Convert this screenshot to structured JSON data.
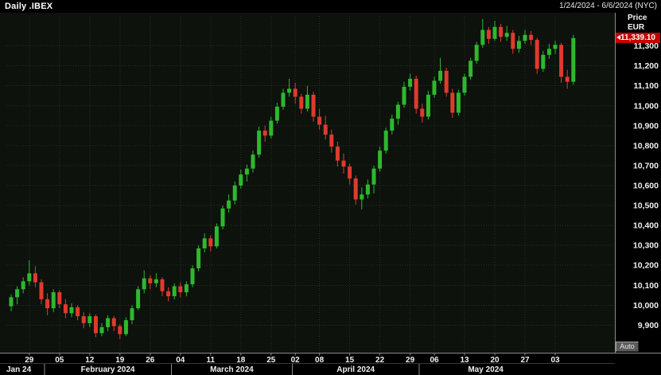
{
  "header": {
    "title": "Daily .IBEX",
    "date_range": "1/24/2024 - 6/6/2024 (NYC)"
  },
  "axis": {
    "price_label": "Price",
    "currency_label": "EUR",
    "auto_label": "Auto"
  },
  "price_tag": {
    "value": "11,339.10",
    "bg_color": "#c40000",
    "text_color": "#ffffff"
  },
  "colors": {
    "plot_bg": "#0d120d",
    "panel_bg": "#000000",
    "up": "#2eb82e",
    "down": "#e03a2e",
    "grid": "#2a2f2a",
    "axis_line": "#8a8a8a",
    "minor_line": "#3a3a3a",
    "text": "#f0f0f0"
  },
  "chart_data": {
    "type": "candlestick",
    "title": "Daily .IBEX",
    "symbol": ".IBEX",
    "interval": "Daily",
    "currency": "EUR",
    "timezone": "NYC",
    "last_price": 11339.1,
    "y_range": [
      9770,
      11450
    ],
    "y_ticks": [
      9900,
      10000,
      10100,
      10200,
      10300,
      10400,
      10500,
      10600,
      10700,
      10800,
      10900,
      11000,
      11100,
      11200,
      11300
    ],
    "x_ticks": [
      {
        "label": "29",
        "index": 3
      },
      {
        "label": "05",
        "index": 8
      },
      {
        "label": "12",
        "index": 13
      },
      {
        "label": "19",
        "index": 18
      },
      {
        "label": "26",
        "index": 23
      },
      {
        "label": "04",
        "index": 28
      },
      {
        "label": "11",
        "index": 33
      },
      {
        "label": "18",
        "index": 38
      },
      {
        "label": "25",
        "index": 43
      },
      {
        "label": "02",
        "index": 47
      },
      {
        "label": "08",
        "index": 51
      },
      {
        "label": "15",
        "index": 56
      },
      {
        "label": "22",
        "index": 61
      },
      {
        "label": "29",
        "index": 66
      },
      {
        "label": "06",
        "index": 70
      },
      {
        "label": "13",
        "index": 75
      },
      {
        "label": "20",
        "index": 80
      },
      {
        "label": "27",
        "index": 85
      },
      {
        "label": "03",
        "index": 90
      }
    ],
    "month_labels": [
      {
        "label": "Jan 24",
        "start": 0,
        "end": 5,
        "align": "left"
      },
      {
        "label": "February 2024",
        "start": 6,
        "end": 26
      },
      {
        "label": "March 2024",
        "start": 27,
        "end": 46
      },
      {
        "label": "April 2024",
        "start": 47,
        "end": 67
      },
      {
        "label": "May 2024",
        "start": 68,
        "end": 89
      }
    ],
    "candles": [
      [
        "2024-01-24",
        9995,
        10055,
        9970,
        10040
      ],
      [
        "2024-01-25",
        10040,
        10095,
        10005,
        10080
      ],
      [
        "2024-01-26",
        10080,
        10140,
        10060,
        10120
      ],
      [
        "2024-01-29",
        10120,
        10225,
        10100,
        10160
      ],
      [
        "2024-01-30",
        10160,
        10195,
        10090,
        10115
      ],
      [
        "2024-01-31",
        10115,
        10130,
        10005,
        10030
      ],
      [
        "2024-02-01",
        10030,
        10060,
        9950,
        9985
      ],
      [
        "2024-02-02",
        9985,
        10080,
        9965,
        10065
      ],
      [
        "2024-02-05",
        10065,
        10075,
        9985,
        10005
      ],
      [
        "2024-02-06",
        10005,
        10030,
        9935,
        9960
      ],
      [
        "2024-02-07",
        9960,
        10010,
        9940,
        9990
      ],
      [
        "2024-02-08",
        9990,
        10000,
        9925,
        9945
      ],
      [
        "2024-02-09",
        9945,
        9965,
        9885,
        9910
      ],
      [
        "2024-02-12",
        9910,
        9960,
        9890,
        9945
      ],
      [
        "2024-02-13",
        9945,
        9955,
        9840,
        9860
      ],
      [
        "2024-02-14",
        9860,
        9910,
        9845,
        9890
      ],
      [
        "2024-02-15",
        9890,
        9950,
        9870,
        9935
      ],
      [
        "2024-02-16",
        9935,
        9945,
        9870,
        9895
      ],
      [
        "2024-02-19",
        9895,
        9905,
        9830,
        9855
      ],
      [
        "2024-02-20",
        9855,
        9940,
        9845,
        9925
      ],
      [
        "2024-02-21",
        9925,
        10000,
        9905,
        9985
      ],
      [
        "2024-02-22",
        9985,
        10095,
        9975,
        10080
      ],
      [
        "2024-02-23",
        10080,
        10175,
        10060,
        10135
      ],
      [
        "2024-02-26",
        10135,
        10150,
        10080,
        10110
      ],
      [
        "2024-02-27",
        10110,
        10160,
        10090,
        10130
      ],
      [
        "2024-02-28",
        10130,
        10140,
        10045,
        10070
      ],
      [
        "2024-02-29",
        10070,
        10090,
        10020,
        10045
      ],
      [
        "2024-03-01",
        10045,
        10110,
        10030,
        10095
      ],
      [
        "2024-03-04",
        10095,
        10115,
        10040,
        10065
      ],
      [
        "2024-03-05",
        10065,
        10120,
        10045,
        10105
      ],
      [
        "2024-03-06",
        10105,
        10200,
        10090,
        10185
      ],
      [
        "2024-03-07",
        10185,
        10300,
        10170,
        10285
      ],
      [
        "2024-03-08",
        10285,
        10360,
        10265,
        10335
      ],
      [
        "2024-03-11",
        10335,
        10350,
        10270,
        10295
      ],
      [
        "2024-03-12",
        10295,
        10410,
        10285,
        10395
      ],
      [
        "2024-03-13",
        10395,
        10500,
        10380,
        10485
      ],
      [
        "2024-03-14",
        10485,
        10555,
        10465,
        10525
      ],
      [
        "2024-03-15",
        10525,
        10620,
        10505,
        10600
      ],
      [
        "2024-03-18",
        10600,
        10680,
        10585,
        10655
      ],
      [
        "2024-03-19",
        10655,
        10705,
        10620,
        10685
      ],
      [
        "2024-03-20",
        10685,
        10775,
        10665,
        10755
      ],
      [
        "2024-03-21",
        10755,
        10895,
        10740,
        10875
      ],
      [
        "2024-03-22",
        10875,
        10900,
        10820,
        10850
      ],
      [
        "2024-03-25",
        10850,
        10945,
        10835,
        10925
      ],
      [
        "2024-03-26",
        10925,
        11015,
        10910,
        10995
      ],
      [
        "2024-03-27",
        10995,
        11085,
        10980,
        11065
      ],
      [
        "2024-03-28",
        11065,
        11135,
        11045,
        11085
      ],
      [
        "2024-04-02",
        11085,
        11115,
        11010,
        11045
      ],
      [
        "2024-04-03",
        11045,
        11060,
        10960,
        10985
      ],
      [
        "2024-04-04",
        10985,
        11100,
        10970,
        11055
      ],
      [
        "2024-04-05",
        11055,
        11070,
        10920,
        10945
      ],
      [
        "2024-04-08",
        10945,
        10985,
        10880,
        10905
      ],
      [
        "2024-04-09",
        10905,
        10950,
        10830,
        10855
      ],
      [
        "2024-04-10",
        10855,
        10880,
        10765,
        10795
      ],
      [
        "2024-04-11",
        10795,
        10820,
        10695,
        10725
      ],
      [
        "2024-04-12",
        10725,
        10760,
        10660,
        10695
      ],
      [
        "2024-04-15",
        10695,
        10710,
        10605,
        10635
      ],
      [
        "2024-04-16",
        10635,
        10650,
        10505,
        10530
      ],
      [
        "2024-04-17",
        10530,
        10590,
        10480,
        10555
      ],
      [
        "2024-04-18",
        10555,
        10630,
        10535,
        10605
      ],
      [
        "2024-04-19",
        10605,
        10700,
        10560,
        10685
      ],
      [
        "2024-04-22",
        10685,
        10795,
        10670,
        10775
      ],
      [
        "2024-04-23",
        10775,
        10890,
        10760,
        10875
      ],
      [
        "2024-04-24",
        10875,
        10955,
        10855,
        10935
      ],
      [
        "2024-04-25",
        10935,
        11020,
        10905,
        11005
      ],
      [
        "2024-04-26",
        11005,
        11120,
        10990,
        11095
      ],
      [
        "2024-04-29",
        11095,
        11160,
        11075,
        11135
      ],
      [
        "2024-04-30",
        11135,
        11150,
        10960,
        10985
      ],
      [
        "2024-05-02",
        10985,
        11010,
        10915,
        10945
      ],
      [
        "2024-05-03",
        10945,
        11075,
        10930,
        11055
      ],
      [
        "2024-05-06",
        11055,
        11145,
        11040,
        11125
      ],
      [
        "2024-05-07",
        11125,
        11240,
        11110,
        11175
      ],
      [
        "2024-05-08",
        11175,
        11190,
        11045,
        11065
      ],
      [
        "2024-05-09",
        11065,
        11085,
        10940,
        10965
      ],
      [
        "2024-05-10",
        10965,
        11080,
        10950,
        11065
      ],
      [
        "2024-05-13",
        11065,
        11160,
        11050,
        11145
      ],
      [
        "2024-05-14",
        11145,
        11240,
        11130,
        11225
      ],
      [
        "2024-05-15",
        11225,
        11320,
        11210,
        11305
      ],
      [
        "2024-05-16",
        11305,
        11435,
        11290,
        11380
      ],
      [
        "2024-05-17",
        11380,
        11395,
        11310,
        11335
      ],
      [
        "2024-05-20",
        11335,
        11425,
        11325,
        11395
      ],
      [
        "2024-05-21",
        11395,
        11410,
        11320,
        11345
      ],
      [
        "2024-05-22",
        11345,
        11400,
        11325,
        11365
      ],
      [
        "2024-05-23",
        11365,
        11380,
        11260,
        11285
      ],
      [
        "2024-05-24",
        11285,
        11350,
        11265,
        11325
      ],
      [
        "2024-05-27",
        11325,
        11380,
        11310,
        11355
      ],
      [
        "2024-05-28",
        11355,
        11375,
        11305,
        11330
      ],
      [
        "2024-05-29",
        11330,
        11340,
        11160,
        11185
      ],
      [
        "2024-05-30",
        11185,
        11275,
        11170,
        11255
      ],
      [
        "2024-05-31",
        11255,
        11310,
        11235,
        11285
      ],
      [
        "2024-06-03",
        11285,
        11325,
        11260,
        11305
      ],
      [
        "2024-06-04",
        11305,
        11315,
        11115,
        11145
      ],
      [
        "2024-06-05",
        11145,
        11180,
        11085,
        11120
      ],
      [
        "2024-06-06",
        11120,
        11355,
        11105,
        11339.1
      ]
    ]
  }
}
